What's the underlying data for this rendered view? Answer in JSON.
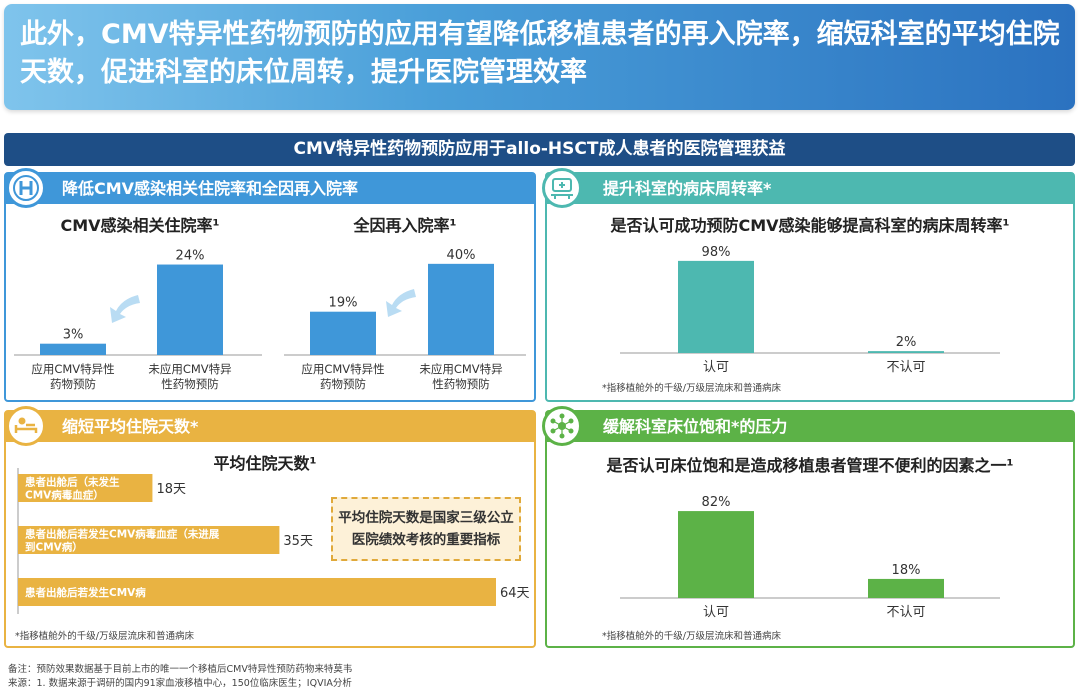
{
  "header": {
    "title": "此外，CMV特异性药物预防的应用有望降低移植患者的再入院率，缩短科室的平均住院天数，促进科室的床位周转，提升医院管理效率"
  },
  "section_title": "CMV特异性药物预防应用于allo-HSCT成人患者的医院管理获益",
  "colors": {
    "blue": "#3f97d9",
    "teal": "#4db8b0",
    "orange": "#e9b342",
    "green": "#5cb247"
  },
  "panels": {
    "readmission": {
      "heading": "降低CMV感染相关住院率和全因再入院率",
      "icon": "hospital-icon"
    },
    "turnover": {
      "heading": "提升科室的病床周转率*",
      "icon": "hospital-bed-icon",
      "footnote": "*指移植舱外的千级/万级层流床和普通病床"
    },
    "los": {
      "heading": "缩短平均住院天数*",
      "icon": "patient-in-bed-icon",
      "footnote": "*指移植舱外的千级/万级层流床和普通病床",
      "callout": "平均住院天数是国家三级公立医院绩效考核的重要指标"
    },
    "saturation": {
      "heading": "缓解科室床位饱和*的压力",
      "icon": "network-icon",
      "footnote": "*指移植舱外的千级/万级层流床和普通病床"
    }
  },
  "chart_data": [
    {
      "type": "bar",
      "title": "CMV感染相关住院率¹",
      "categories": [
        "应用CMV特异性药物预防",
        "未应用CMV特异性药物预防"
      ],
      "category_lines": [
        [
          "应用CMV特异性",
          "药物预防"
        ],
        [
          "未应用CMV特异",
          "性药物预防"
        ]
      ],
      "values": [
        3,
        24
      ],
      "labels": [
        "3%",
        "24%"
      ],
      "ylim": [
        0,
        26
      ]
    },
    {
      "type": "bar",
      "title": "全因再入院率¹",
      "categories": [
        "应用CMV特异性药物预防",
        "未应用CMV特异性药物预防"
      ],
      "category_lines": [
        [
          "应用CMV特异性",
          "药物预防"
        ],
        [
          "未应用CMV特异",
          "性药物预防"
        ]
      ],
      "values": [
        19,
        40
      ],
      "labels": [
        "19%",
        "40%"
      ],
      "ylim": [
        0,
        43
      ]
    },
    {
      "type": "bar",
      "title": "是否认可成功预防CMV感染能够提高科室的病床周转率¹",
      "categories": [
        "认可",
        "不认可"
      ],
      "values": [
        98,
        2
      ],
      "labels": [
        "98%",
        "2%"
      ],
      "ylim": [
        0,
        100
      ]
    },
    {
      "type": "bar",
      "orientation": "horizontal",
      "title": "平均住院天数¹",
      "categories": [
        "患者出舱后（未发生CMV病毒血症）",
        "患者出舱后若发生CMV病毒血症（未进展到CMV病）",
        "患者出舱后若发生CMV病"
      ],
      "category_lines": [
        [
          "患者出舱后（未发生",
          "CMV病毒血症）"
        ],
        [
          "患者出舱后若发生CMV病毒血症（未进展",
          "到CMV病）"
        ],
        [
          "患者出舱后若发生CMV病"
        ]
      ],
      "values": [
        18,
        35,
        64
      ],
      "labels": [
        "18天",
        "35天",
        "64天"
      ],
      "xlim": [
        0,
        64
      ]
    },
    {
      "type": "bar",
      "title": "是否认可床位饱和是造成移植患者管理不便利的因素之一¹",
      "categories": [
        "认可",
        "不认可"
      ],
      "values": [
        82,
        18
      ],
      "labels": [
        "82%",
        "18%"
      ],
      "ylim": [
        0,
        100
      ]
    }
  ],
  "footer": {
    "note": "备注：预防效果数据基于目前上市的唯一一个移植后CMV特异性预防药物来特莫韦",
    "source": "来源：1. 数据来源于调研的国内91家血液移植中心，150位临床医生；IQVIA分析"
  }
}
